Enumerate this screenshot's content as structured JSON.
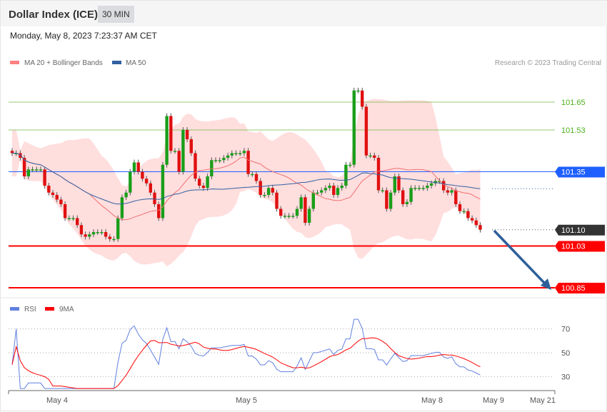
{
  "header": {
    "title": "Dollar Index (ICE)",
    "timeframe": "30 MIN"
  },
  "date": "Monday, May 8, 2023 7:23:37 AM CET",
  "legend": {
    "ma20": "MA 20 + Bollinger Bands",
    "ma50": "MA 50",
    "rsi": "RSI",
    "rsi_ma": "9MA"
  },
  "copyright": "Research © 2023 Trading Central",
  "levels": [
    {
      "value": "101.65",
      "type": "resistance",
      "color": "#4caf1a"
    },
    {
      "value": "101.53",
      "type": "resistance",
      "color": "#4caf1a"
    },
    {
      "value": "101.35",
      "type": "pivot",
      "color": "#1f5fff"
    },
    {
      "value": "101.10",
      "type": "last",
      "color": "#333333"
    },
    {
      "value": "101.03",
      "type": "support",
      "color": "#ff0000"
    },
    {
      "value": "100.85",
      "type": "support",
      "color": "#ff0000"
    }
  ],
  "rsi_levels": [
    "70",
    "50",
    "30"
  ],
  "x_labels": [
    "May 4",
    "May 5",
    "May 8",
    "May 9",
    "May 21"
  ],
  "colors": {
    "up": "#1a9e1a",
    "down": "#e01010",
    "band": "#ffdede",
    "ma20": "#f07070",
    "ma50": "#3060a0",
    "rsi": "#6080e0",
    "rsi_ma": "#ff0000",
    "arrow": "#2e5f9a"
  },
  "chart_data": {
    "type": "candlestick",
    "closes": [
      101.43,
      101.43,
      101.41,
      101.33,
      101.36,
      101.36,
      101.36,
      101.36,
      101.29,
      101.26,
      101.25,
      101.23,
      101.21,
      101.15,
      101.15,
      101.15,
      101.12,
      101.08,
      101.07,
      101.08,
      101.09,
      101.09,
      101.09,
      101.07,
      101.06,
      101.06,
      101.15,
      101.24,
      101.26,
      101.35,
      101.39,
      101.35,
      101.32,
      101.3,
      101.26,
      101.21,
      101.15,
      101.38,
      101.59,
      101.44,
      101.44,
      101.35,
      101.53,
      101.49,
      101.43,
      101.32,
      101.29,
      101.28,
      101.33,
      101.4,
      101.4,
      101.4,
      101.41,
      101.42,
      101.43,
      101.43,
      101.43,
      101.44,
      101.34,
      101.34,
      101.31,
      101.25,
      101.25,
      101.28,
      101.26,
      101.19,
      101.16,
      101.16,
      101.16,
      101.16,
      101.19,
      101.24,
      101.13,
      101.19,
      101.26,
      101.26,
      101.27,
      101.28,
      101.29,
      101.25,
      101.28,
      101.29,
      101.38,
      101.38,
      101.7,
      101.7,
      101.63,
      101.42,
      101.42,
      101.41,
      101.27,
      101.27,
      101.19,
      101.26,
      101.33,
      101.27,
      101.21,
      101.22,
      101.28,
      101.28,
      101.28,
      101.28,
      101.29,
      101.3,
      101.31,
      101.31,
      101.27,
      101.26,
      101.27,
      101.21,
      101.18,
      101.18,
      101.15,
      101.14,
      101.12,
      101.1
    ],
    "forecast": "down to 100.85"
  }
}
